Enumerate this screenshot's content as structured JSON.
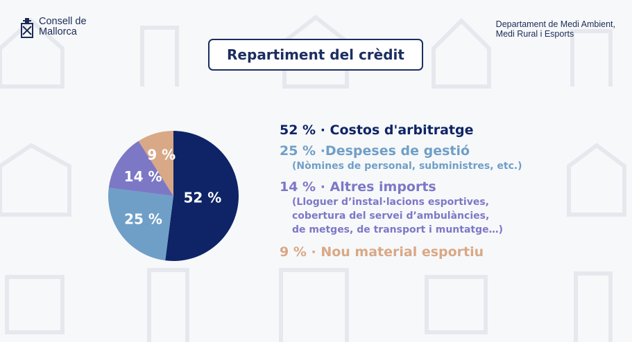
{
  "header": {
    "logo_line1": "Consell de",
    "logo_line2": "Mallorca",
    "dept_line1": "Departament de Medi Ambient,",
    "dept_line2": "Medi Rural i Esports"
  },
  "title": "Repartiment del crèdit",
  "colors": {
    "navy": "#0e2466",
    "lightblue": "#6f9fc7",
    "purple": "#7c78c6",
    "tan": "#d9a886",
    "title_border": "#1c2e61"
  },
  "legend": [
    {
      "title": "52 % · Costos d'arbitratge",
      "color": "#0e2466",
      "details": []
    },
    {
      "title": "25 % ·Despeses de gestió",
      "color": "#6f9fc7",
      "details": [
        "(Nòmines de personal, subministres, etc.)"
      ]
    },
    {
      "title": "14 % · Altres imports",
      "color": "#7c78c6",
      "details": [
        "(Lloguer d’instal·lacions esportives,",
        "cobertura del servei d’ambulàncies,",
        "de metges, de transport i muntatge…)"
      ]
    },
    {
      "title": "9 % · Nou material esportiu",
      "color": "#d9a886",
      "details": []
    }
  ],
  "chart_data": {
    "type": "pie",
    "title": "Repartiment del crèdit",
    "slices": [
      {
        "label": "52 %",
        "value": 52,
        "color": "#0e2466"
      },
      {
        "label": "25 %",
        "value": 25,
        "color": "#6f9fc7"
      },
      {
        "label": "14 %",
        "value": 14,
        "color": "#7c78c6"
      },
      {
        "label": "9 %",
        "value": 9,
        "color": "#d9a886"
      }
    ],
    "start": "12 o'clock",
    "direction": "clockwise"
  }
}
